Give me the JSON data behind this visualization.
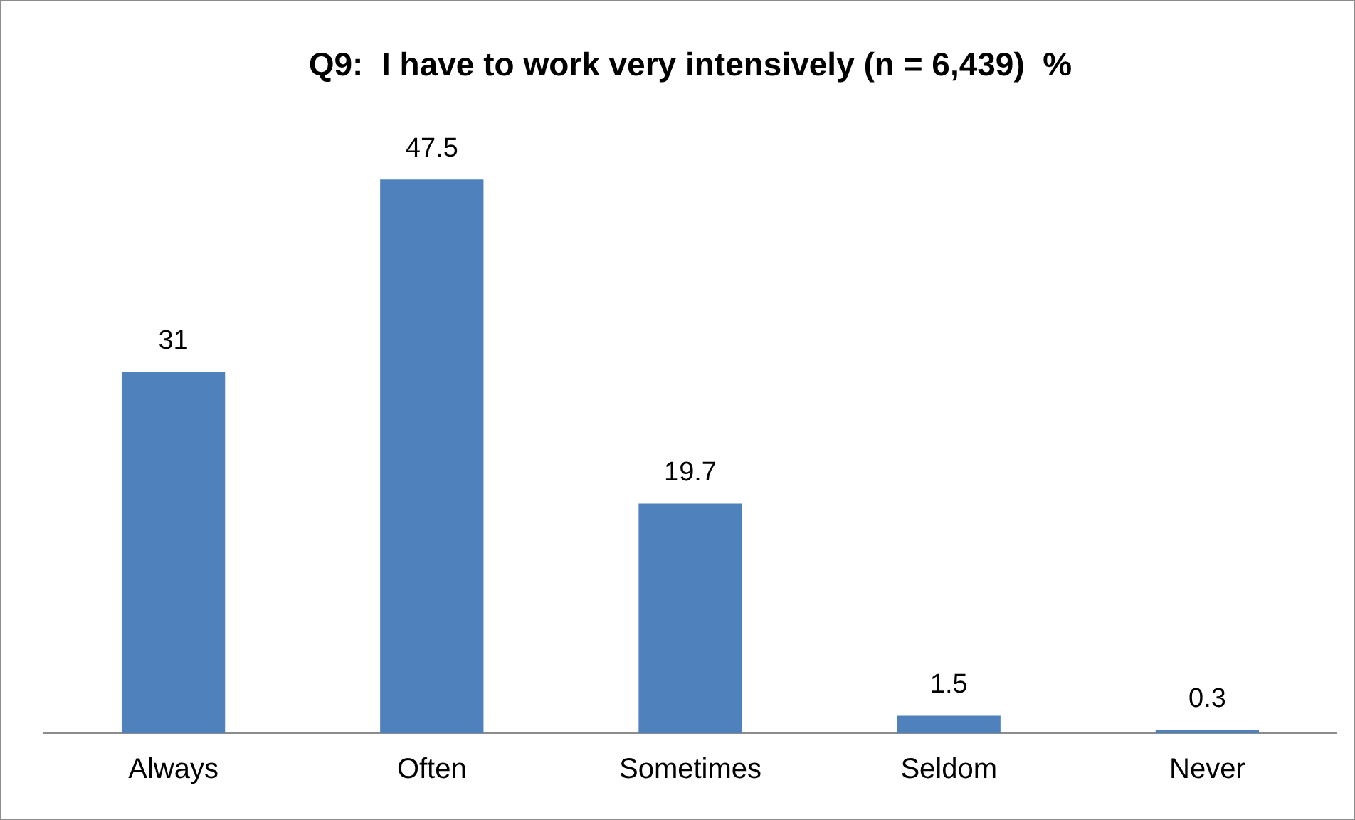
{
  "chart_data": {
    "type": "bar",
    "title": "Q9:  I have to work very intensively (n = 6,439)  %",
    "categories": [
      "Always",
      "Often",
      "Sometimes",
      "Seldom",
      "Never"
    ],
    "values": [
      31,
      47.5,
      19.7,
      1.5,
      0.3
    ],
    "color": "#4f81bd",
    "data_labels": true,
    "grid": false,
    "legend": false
  }
}
